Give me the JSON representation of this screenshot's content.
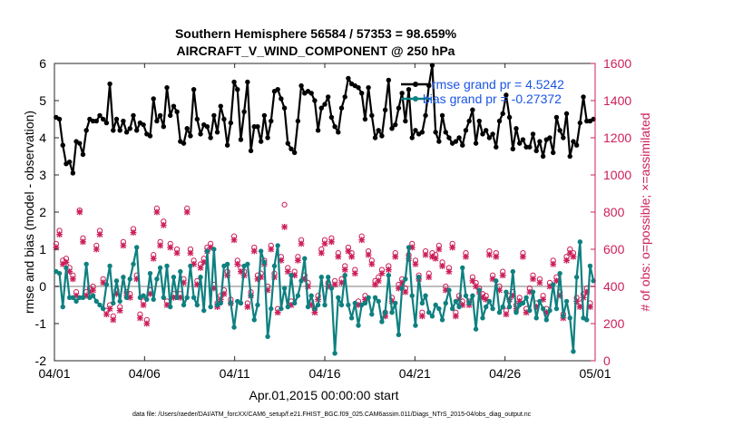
{
  "chart_data": {
    "type": "line",
    "title": "Southern Hemisphere 56584 / 57353 = 98.659%",
    "subtitle": "AIRCRAFT_V_WIND_COMPONENT @ 250 hPa",
    "xlabel": "Apr.01,2015 00:00:00 start",
    "ylabel": "rmse and bias (model - observation)",
    "y2label": "# of obs: o=possible; ×=assimilated",
    "xlim": [
      0,
      30
    ],
    "ylim": [
      -2,
      6
    ],
    "y2lim": [
      0,
      1600
    ],
    "xticks": [
      0,
      5,
      10,
      15,
      20,
      25,
      30
    ],
    "xtick_labels": [
      "04/01",
      "04/06",
      "04/11",
      "04/16",
      "04/21",
      "04/26",
      "05/01"
    ],
    "yticks": [
      -2,
      -1,
      0,
      1,
      2,
      3,
      4,
      5,
      6
    ],
    "y2ticks": [
      0,
      200,
      400,
      600,
      800,
      1000,
      1200,
      1400,
      1600
    ],
    "legend": [
      "rmse grand pr = 4.5242",
      "bias grand pr = -0.27372"
    ],
    "footnote": "data file: /Users/raeder/DAI/ATM_forcXX/CAM6_setup/f.e21.FHIST_BGC.f09_025.CAM6assim.011/Diags_NTrS_2015-04/obs_diag_output.nc",
    "colors": {
      "rmse": "#000000",
      "bias": "#0f8080",
      "obs": "#cc1f5a",
      "zero": "#bdbdbd"
    },
    "series": [
      {
        "name": "rmse",
        "values": [
          4.55,
          4.5,
          3.8,
          3.3,
          3.35,
          3.05,
          3.9,
          3.85,
          3.55,
          4.2,
          4.5,
          4.45,
          4.45,
          4.6,
          4.5,
          4.4,
          5.45,
          4.2,
          4.5,
          4.2,
          4.45,
          4.15,
          4.25,
          4.6,
          4.2,
          4.4,
          4.35,
          4.1,
          4.05,
          5.05,
          4.45,
          4.6,
          4.3,
          5.35,
          4.6,
          4.85,
          4.7,
          3.9,
          3.85,
          4.25,
          4.05,
          5.3,
          4.5,
          4.1,
          4.35,
          4.3,
          4.0,
          4.6,
          4.15,
          4.85,
          4.5,
          3.8,
          4.4,
          5.5,
          5.3,
          3.95,
          4.7,
          5.5,
          3.65,
          4.3,
          4.3,
          3.9,
          4.6,
          4.0,
          4.45,
          5.25,
          5.3,
          5.05,
          4.8,
          3.85,
          3.7,
          3.6,
          4.45,
          5.4,
          5.2,
          5.25,
          5.2,
          5.0,
          4.2,
          4.8,
          4.9,
          5.1,
          4.55,
          4.3,
          4.15,
          4.8,
          5.1,
          5.6,
          5.45,
          5.4,
          5.35,
          5.2,
          4.5,
          5.35,
          4.6,
          4.0,
          4.2,
          4.05,
          4.75,
          5.55,
          4.25,
          4.35,
          4.8,
          5.2,
          4.45,
          5.3,
          4.0,
          4.2,
          4.1,
          4.15,
          4.6,
          5.4,
          5.95,
          4.15,
          3.9,
          4.6,
          4.15,
          4.0,
          3.85,
          3.9,
          4.0,
          3.8,
          4.2,
          4.45,
          4.75,
          3.85,
          4.45,
          4.1,
          4.2,
          4.0,
          4.1,
          3.75,
          4.45,
          4.65,
          5.15,
          4.55,
          3.7,
          4.25,
          3.85,
          3.95,
          3.75,
          3.75,
          4.1,
          3.65,
          3.9,
          3.5,
          3.95,
          4.0,
          3.6,
          4.55,
          4.2,
          4.0,
          4.65,
          3.5,
          3.9,
          3.8,
          4.4,
          5.1,
          4.45,
          4.45,
          4.5
        ]
      },
      {
        "name": "bias",
        "values": [
          0.4,
          0.35,
          -0.55,
          0.5,
          -0.3,
          -0.3,
          -0.4,
          -0.3,
          -0.3,
          0.6,
          -0.3,
          -0.25,
          -0.4,
          -0.5,
          -0.6,
          0.05,
          0.55,
          -0.45,
          0.15,
          -0.4,
          0.25,
          -0.3,
          0.2,
          0.6,
          1.05,
          -0.3,
          -0.25,
          -0.35,
          0.35,
          -0.35,
          0.2,
          0.5,
          -0.3,
          0.55,
          -0.55,
          0.25,
          -0.3,
          0.4,
          -0.5,
          -0.3,
          0.55,
          -0.3,
          -0.5,
          0.25,
          -0.65,
          0.95,
          -0.55,
          1.0,
          -0.5,
          -0.45,
          0.55,
          0.6,
          -0.45,
          -1.1,
          -0.4,
          -0.45,
          0.55,
          0.6,
          -0.25,
          -0.9,
          -0.5,
          0.95,
          0.65,
          -1.35,
          -0.6,
          0.55,
          1.1,
          -0.6,
          -0.05,
          -0.55,
          0.3,
          -0.45,
          -0.25,
          0.15,
          0.75,
          -0.55,
          -0.25,
          -0.6,
          -0.5,
          0.25,
          -0.5,
          0.25,
          -0.05,
          -1.8,
          -0.3,
          -0.5,
          0.3,
          -0.5,
          -0.85,
          -0.45,
          -1.05,
          -0.5,
          -0.45,
          -0.3,
          -0.75,
          -0.3,
          -0.4,
          -0.95,
          -0.7,
          0.3,
          -0.7,
          -0.45,
          -1.3,
          -0.05,
          0.2,
          1.05,
          -0.25,
          -1.05,
          0.25,
          -0.45,
          -0.25,
          -0.7,
          -0.8,
          -0.5,
          -0.6,
          -0.9,
          -0.45,
          -0.1,
          -0.6,
          -0.4,
          -0.55,
          0.5,
          -0.25,
          -0.45,
          -0.25,
          -1.15,
          -0.1,
          -0.85,
          -0.55,
          -0.4,
          -0.6,
          0.15,
          -0.7,
          -0.55,
          -0.15,
          -0.55,
          0.4,
          -0.7,
          -0.5,
          -0.45,
          -0.3,
          -0.65,
          -0.15,
          -0.85,
          -0.4,
          -0.6,
          -0.9,
          -0.65,
          0.05,
          -0.6,
          0.35,
          -0.8,
          -0.4,
          -0.85,
          -1.75,
          0.25,
          1.2,
          -0.85,
          -0.9,
          0.55,
          0.15
        ]
      },
      {
        "name": "obs_assimilated",
        "values": [
          610,
          680,
          520,
          530,
          480,
          440,
          350,
          800,
          640,
          350,
          370,
          380,
          600,
          680,
          420,
          250,
          280,
          220,
          360,
          270,
          620,
          350,
          340,
          690,
          440,
          230,
          300,
          200,
          360,
          550,
          800,
          620,
          730,
          300,
          610,
          340,
          580,
          340,
          420,
          800,
          580,
          520,
          410,
          500,
          530,
          590,
          610,
          390,
          290,
          330,
          360,
          460,
          310,
          650,
          520,
          480,
          460,
          290,
          350,
          590,
          440,
          450,
          520,
          380,
          600,
          450,
          260,
          540,
          720,
          480,
          300,
          460,
          540,
          630,
          440,
          400,
          300,
          260,
          330,
          580,
          630,
          400,
          640,
          410,
          560,
          420,
          490,
          590,
          560,
          470,
          300,
          650,
          330,
          570,
          520,
          410,
          430,
          470,
          240,
          490,
          320,
          560,
          390,
          420,
          370,
          550,
          610,
          520,
          440,
          240,
          570,
          450,
          560,
          550,
          600,
          510,
          380,
          480,
          610,
          240,
          330,
          300,
          560,
          300,
          430,
          400,
          370,
          340,
          330,
          570,
          440,
          560,
          380,
          460,
          250,
          330,
          350,
          280,
          320,
          560,
          260,
          370,
          440,
          290,
          420,
          330,
          260,
          400,
          520,
          430,
          350,
          230,
          540,
          580,
          560,
          320,
          290,
          340,
          370,
          290
        ]
      },
      {
        "name": "obs_possible",
        "values": [
          630,
          700,
          540,
          550,
          500,
          460,
          370,
          810,
          660,
          370,
          390,
          400,
          620,
          700,
          440,
          270,
          300,
          240,
          380,
          290,
          640,
          370,
          360,
          710,
          460,
          250,
          320,
          220,
          380,
          570,
          820,
          640,
          750,
          320,
          630,
          360,
          600,
          360,
          440,
          820,
          600,
          540,
          430,
          520,
          550,
          610,
          630,
          410,
          310,
          350,
          380,
          480,
          330,
          670,
          540,
          500,
          480,
          310,
          370,
          610,
          460,
          470,
          540,
          400,
          620,
          470,
          280,
          560,
          840,
          500,
          320,
          480,
          560,
          650,
          460,
          420,
          320,
          280,
          350,
          600,
          650,
          420,
          660,
          430,
          580,
          440,
          510,
          610,
          580,
          490,
          320,
          670,
          350,
          590,
          540,
          430,
          450,
          490,
          260,
          510,
          340,
          580,
          410,
          440,
          390,
          570,
          630,
          540,
          460,
          260,
          590,
          470,
          580,
          570,
          620,
          530,
          400,
          500,
          630,
          260,
          350,
          320,
          580,
          320,
          450,
          420,
          390,
          360,
          350,
          590,
          460,
          580,
          400,
          480,
          270,
          350,
          370,
          300,
          340,
          580,
          280,
          390,
          460,
          310,
          440,
          350,
          280,
          420,
          540,
          450,
          370,
          250,
          560,
          600,
          580,
          340,
          310,
          360,
          390,
          310
        ]
      }
    ]
  }
}
